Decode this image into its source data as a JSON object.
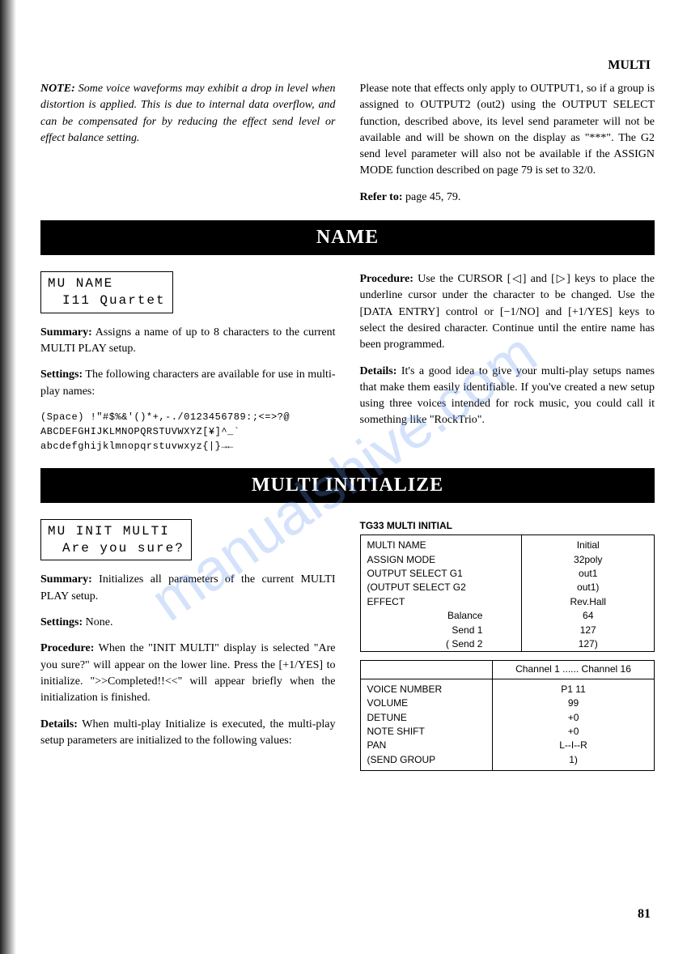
{
  "header": {
    "section": "MULTI"
  },
  "note": {
    "label": "NOTE:",
    "text": "Some voice waveforms may exhibit a drop in level when distortion is applied. This is due to internal data overflow, and can be compensated for by reducing the effect send level or effect balance setting."
  },
  "right_top": {
    "text": "Please note that effects only apply to OUTPUT1, so if a group is assigned to OUTPUT2 (out2) using the OUTPUT SELECT function, described above, its level send parameter will not be available and will be shown on the display as \"***\". The G2 send level parameter will also not be available if the ASSIGN MODE function described on page 79 is set to 32/0.",
    "refer_label": "Refer to:",
    "refer_pages": " page 45, 79."
  },
  "name_section": {
    "bar": "NAME",
    "lcd_line1": "MU NAME",
    "lcd_line2": "I11  Quartet",
    "summary_label": "Summary:",
    "summary": " Assigns a name of up to 8 characters to the current MULTI PLAY setup.",
    "settings_label": "Settings:",
    "settings": " The following characters are available for use in multi-play names:",
    "charset_l1": "(Space) !\"#$%&'()*+,-./0123456789:;<=>?@",
    "charset_l2": "ABCDEFGHIJKLMNOPQRSTUVWXYZ[¥]^_`",
    "charset_l3": "abcdefghijklmnopqrstuvwxyz{|}→←",
    "procedure_label": "Procedure:",
    "procedure": " Use the CURSOR [◁] and [▷] keys to place the underline cursor under the character to be changed. Use the [DATA ENTRY] control or [−1/NO] and [+1/YES] keys to select the desired character. Continue until the entire name has been programmed.",
    "details_label": "Details:",
    "details": " It's a good idea to give your multi-play setups names that make them easily identifiable. If you've created a new setup using three voices intended for rock music, you could call it something like \"RockTrio\"."
  },
  "init_section": {
    "bar": "MULTI INITIALIZE",
    "lcd_line1": "MU INIT MULTI",
    "lcd_line2": "Are you sure?",
    "summary_label": "Summary:",
    "summary": " Initializes all parameters of the current MULTI PLAY setup.",
    "settings_label": "Settings:",
    "settings": " None.",
    "procedure_label": "Procedure:",
    "procedure": " When the \"INIT MULTI\" display is selected \"Are you sure?\" will appear on the lower line. Press the [+1/YES] to initialize. \">>Completed!!<<\" will appear briefly when the initialization is finished.",
    "details_label": "Details:",
    "details": " When multi-play Initialize is executed, the multi-play setup parameters are initialized to the following values:",
    "table_title": "TG33 MULTI INITIAL",
    "table1": {
      "rows": [
        [
          "MULTI NAME",
          "Initial"
        ],
        [
          "ASSIGN MODE",
          "32poly"
        ],
        [
          "OUTPUT SELECT G1",
          "out1"
        ],
        [
          "(OUTPUT SELECT G2",
          "out1)"
        ],
        [
          "EFFECT",
          "Rev.Hall"
        ]
      ],
      "subrows": [
        [
          "Balance",
          "64"
        ],
        [
          "Send 1",
          "127"
        ],
        [
          "(                         Send 2",
          "127)"
        ]
      ]
    },
    "table2": {
      "header": [
        "",
        "Channel 1 ...... Channel 16"
      ],
      "rows": [
        [
          "VOICE NUMBER",
          "P1 11"
        ],
        [
          "VOLUME",
          "99"
        ],
        [
          "DETUNE",
          "+0"
        ],
        [
          "NOTE SHIFT",
          "+0"
        ],
        [
          "PAN",
          "L--I--R"
        ],
        [
          "(SEND GROUP",
          "1)"
        ]
      ]
    }
  },
  "watermark": "manualshive.com",
  "page_number": "81"
}
